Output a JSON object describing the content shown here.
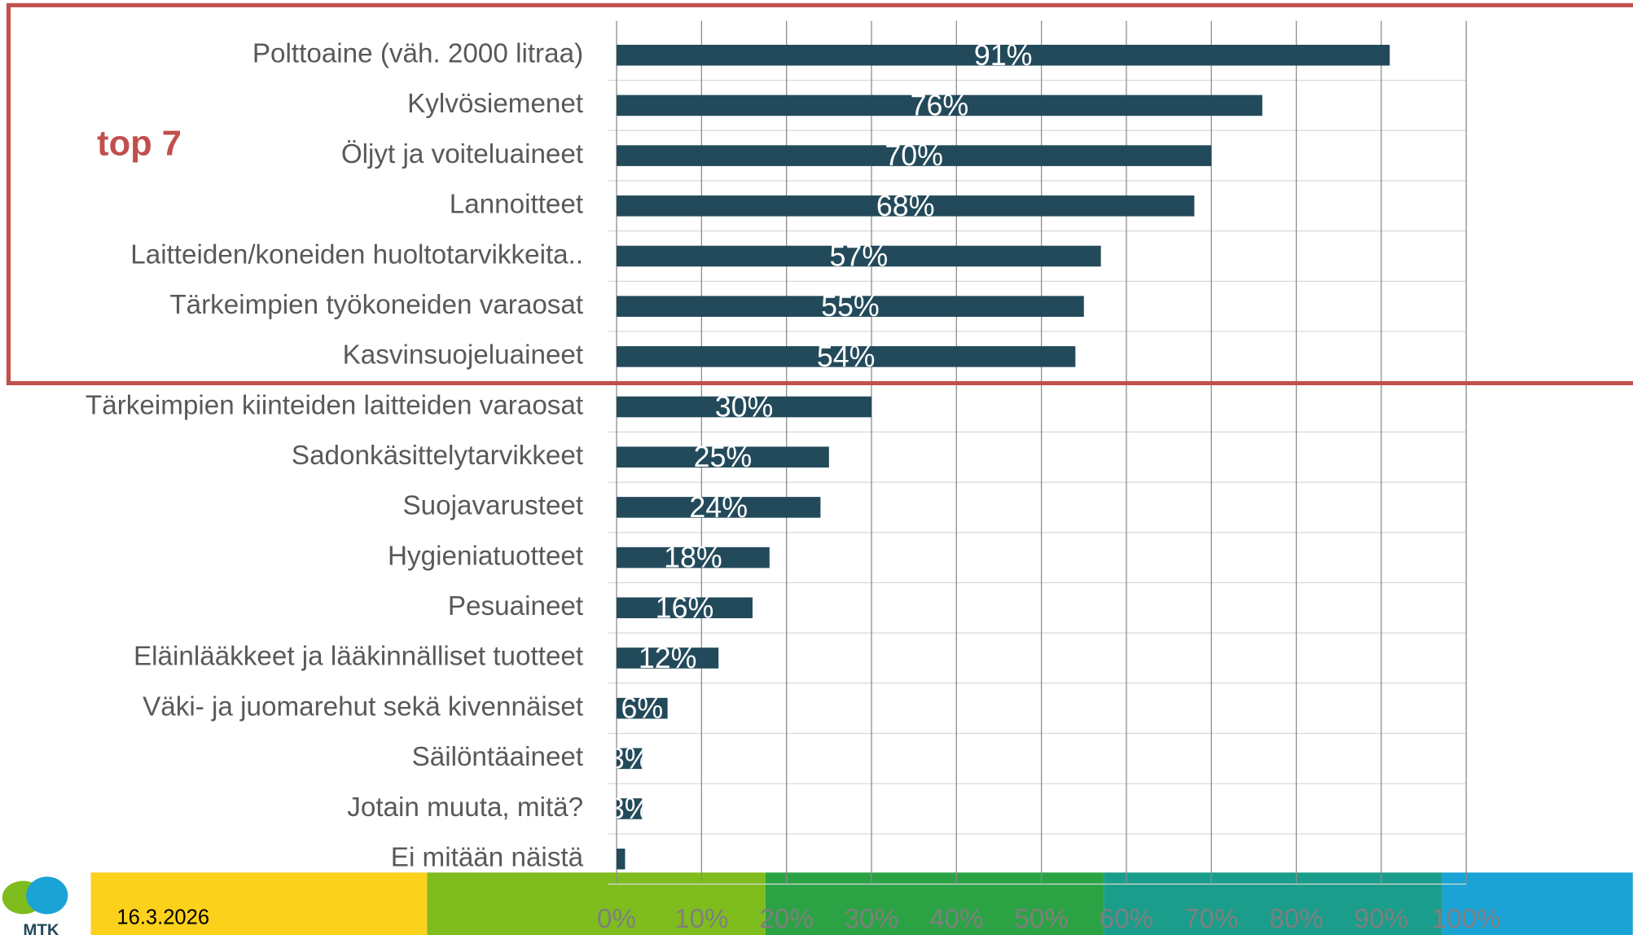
{
  "chart_data": {
    "type": "barh",
    "annotation": "top 7",
    "date": "16.3.2026",
    "logo": "MTK",
    "categories": [
      "Polttoaine (väh. 2000 litraa)",
      "Kylvösiemenet",
      "Öljyt ja voiteluaineet",
      "Lannoitteet",
      "Laitteiden/koneiden huoltotarvikkeita..",
      "Tärkeimpien työkoneiden varaosat",
      "Kasvinsuojeluaineet",
      "Tärkeimpien kiinteiden laitteiden varaosat",
      "Sadonkäsittelytarvikkeet",
      "Suojavarusteet",
      "Hygieniatuotteet",
      "Pesuaineet",
      "Eläinlääkkeet ja lääkinnälliset tuotteet",
      "Väki- ja juomarehut sekä kivennäiset",
      "Säilöntäaineet",
      "Jotain muuta, mitä?",
      "Ei mitään näistä"
    ],
    "values": [
      91,
      76,
      70,
      68,
      57,
      55,
      54,
      30,
      25,
      24,
      18,
      16,
      12,
      6,
      3,
      3,
      1
    ],
    "value_labels": [
      "91%",
      "76%",
      "70%",
      "68%",
      "57%",
      "55%",
      "54%",
      "30%",
      "25%",
      "24%",
      "18%",
      "16%",
      "12%",
      "6%",
      "3%",
      "3%",
      null
    ],
    "color": "#234a5a",
    "xlim": [
      0,
      100
    ],
    "xticks": [
      {
        "value": 0,
        "label": "0%"
      },
      {
        "value": 10,
        "label": "10%"
      },
      {
        "value": 20,
        "label": "20%"
      },
      {
        "value": 30,
        "label": "30%"
      },
      {
        "value": 40,
        "label": "40%"
      },
      {
        "value": 50,
        "label": "50%"
      },
      {
        "value": 60,
        "label": "60%"
      },
      {
        "value": 70,
        "label": "70%"
      },
      {
        "value": 80,
        "label": "80%"
      },
      {
        "value": 90,
        "label": "90%"
      },
      {
        "value": 100,
        "label": "100%"
      }
    ],
    "grid": true
  }
}
